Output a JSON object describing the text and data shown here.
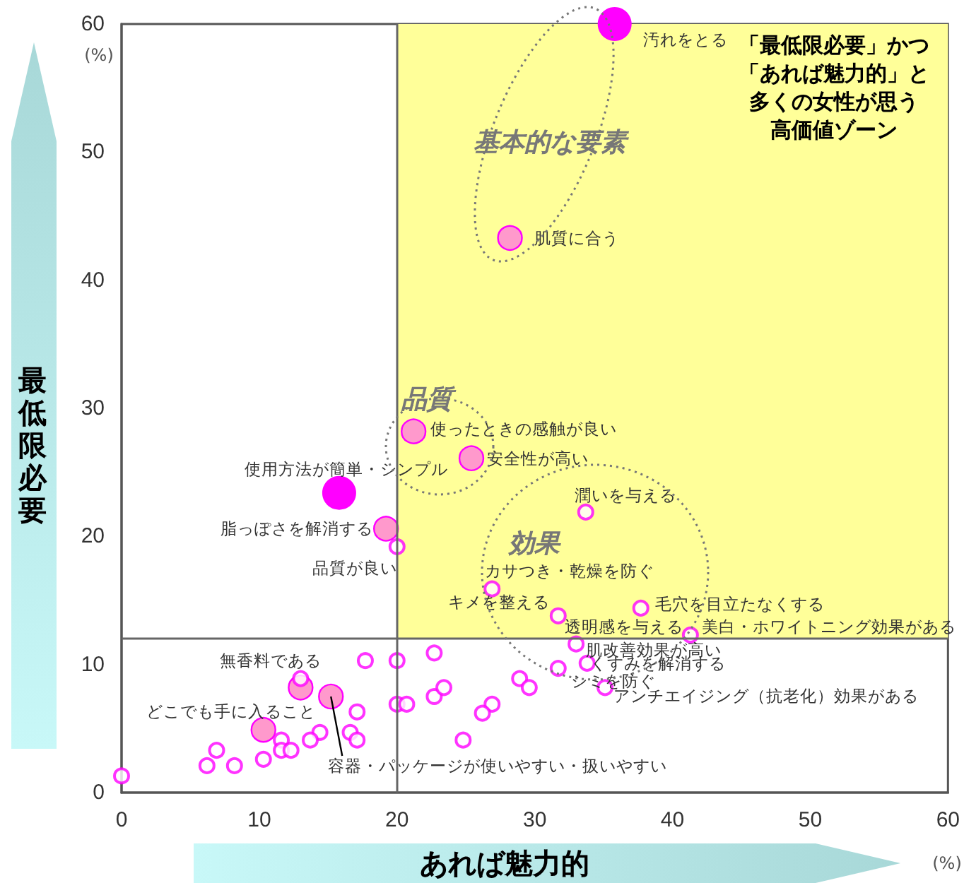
{
  "chart_data": {
    "type": "bubble",
    "xlabel": "あれば魅力的",
    "ylabel": "最低限必要",
    "xlim": [
      0,
      60
    ],
    "xticks": [
      0,
      10,
      20,
      30,
      40,
      50,
      60
    ],
    "ylim": [
      0,
      60
    ],
    "yticks": [
      0,
      10,
      20,
      30,
      40,
      50,
      60
    ],
    "grid": false,
    "marker": "circle",
    "ref_lines": [
      {
        "axis": "x",
        "value": 20,
        "color": "#666666"
      },
      {
        "axis": "y",
        "value": 12,
        "color": "#666666"
      }
    ],
    "bands": [
      {
        "axis": "x",
        "from": 20,
        "to": 60,
        "color": "#ffff99"
      }
    ],
    "series": [
      {
        "type": "scatter",
        "color": "#ff00ff",
        "x": [
          20.0,
          33.7,
          26.9,
          31.7,
          37.7,
          41.3,
          33.0,
          33.8,
          31.7,
          35.1,
          28.9,
          29.6,
          26.9,
          26.2,
          0,
          13.0,
          17.7,
          20.0,
          22.7,
          20.0,
          20.7,
          22.7,
          23.4,
          24.8,
          17.1,
          16.6,
          17.1,
          14.4,
          13.7,
          11.6,
          11.6,
          12.3,
          6.9,
          6.2,
          8.2,
          10.3
        ],
        "values": [
          19.2,
          21.9,
          15.9,
          13.8,
          14.4,
          12.3,
          11.6,
          10.1,
          9.7,
          8.2,
          8.9,
          8.2,
          6.9,
          6.2,
          1.3,
          8.9,
          10.3,
          10.3,
          10.9,
          6.9,
          6.9,
          7.5,
          8.2,
          4.1,
          6.3,
          4.7,
          4.1,
          4.7,
          4.1,
          4.1,
          3.3,
          3.3,
          3.3,
          2.1,
          2.1,
          2.6
        ]
      },
      {
        "color": "#ff99cc",
        "x": [
          28.2,
          21.2,
          25.4,
          19.2,
          13.0,
          15.2,
          10.3
        ],
        "values": [
          43.3,
          28.2,
          26.1,
          20.6,
          8.2,
          7.5,
          4.9
        ],
        "sizes": [
          0.5,
          0.5,
          0.5,
          0.5,
          0.5,
          0.5,
          0.5
        ]
      },
      {
        "color": "#ff00ff",
        "x": [
          35.8,
          15.8
        ],
        "values": [
          60,
          23.4
        ],
        "sizes": [
          1,
          1
        ]
      }
    ],
    "annotations": [
      {
        "text": "汚れをとる",
        "x": 35.8,
        "y": 60
      },
      {
        "text": "使用方法が簡単・シンプル",
        "x": 15.8,
        "y": 23.4
      },
      {
        "text": "肌質に合う",
        "x": 28.2,
        "y": 43.3
      },
      {
        "text": "使ったときの感触が良い",
        "x": 21.2,
        "y": 28.2
      },
      {
        "text": "安全性が高い",
        "x": 25.4,
        "y": 26.1
      },
      {
        "text": "脂っぽさを解消する",
        "x": 19.2,
        "y": 20.6
      },
      {
        "text": "品質が良い",
        "x": 20.0,
        "y": 19.2
      },
      {
        "text": "潤いを与える",
        "x": 33.7,
        "y": 21.9
      },
      {
        "text": "カサつき・乾燥を防ぐ",
        "x": 26.9,
        "y": 15.9
      },
      {
        "text": "キメを整える",
        "x": 31.7,
        "y": 13.8
      },
      {
        "text": "毛穴を目立たなくする",
        "x": 37.7,
        "y": 14.4
      },
      {
        "text": "美白・ホワイトニング効果がある",
        "x": 41.3,
        "y": 12.3
      },
      {
        "text": "透明感を与える",
        "x": 41.3,
        "y": 12.3
      },
      {
        "text": "肌改善効果が高い",
        "x": 33.0,
        "y": 11.6
      },
      {
        "text": "くすみを解消する",
        "x": 33.8,
        "y": 10.1
      },
      {
        "text": "シミを防ぐ",
        "x": 31.7,
        "y": 9.7
      },
      {
        "text": "アンチエイジング（抗老化）効果がある",
        "x": 35.1,
        "y": 8.2
      },
      {
        "text": "無香料である",
        "x": 13.0,
        "y": 8.2
      },
      {
        "text": "どこでも手に入ること",
        "x": 10.3,
        "y": 4.9
      },
      {
        "text": "容器・パッケージが使いやすい・扱いやすい",
        "x": 15.2,
        "y": 7.5
      },
      "基本的な要素",
      "品質",
      "効果",
      "「最低限必要」かつ",
      "「あれば魅力的」と",
      "多くの女性が思う",
      "高価値ゾーン",
      "(%)",
      "(%)"
    ]
  }
}
